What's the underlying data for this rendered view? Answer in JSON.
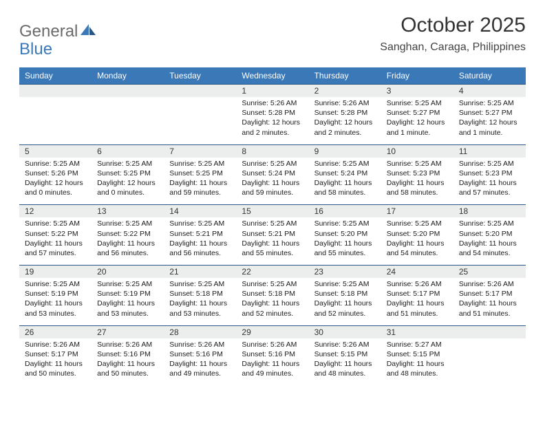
{
  "logo": {
    "text1": "General",
    "text2": "Blue",
    "icon_color": "#3a78b8"
  },
  "title": "October 2025",
  "location": "Sanghan, Caraga, Philippines",
  "colors": {
    "header_bg": "#3a78b8",
    "header_text": "#ffffff",
    "daynum_bg": "#eceeee",
    "border": "#2b5585",
    "page_bg": "#ffffff",
    "body_text": "#1a1a1a"
  },
  "layout": {
    "columns": 7,
    "rows": 5,
    "cell_font_size": 10.5,
    "header_font_size": 12
  },
  "dow": [
    "Sunday",
    "Monday",
    "Tuesday",
    "Wednesday",
    "Thursday",
    "Friday",
    "Saturday"
  ],
  "weeks": [
    [
      {
        "n": "",
        "l1": "",
        "l2": "",
        "l3": "",
        "l4": ""
      },
      {
        "n": "",
        "l1": "",
        "l2": "",
        "l3": "",
        "l4": ""
      },
      {
        "n": "",
        "l1": "",
        "l2": "",
        "l3": "",
        "l4": ""
      },
      {
        "n": "1",
        "l1": "Sunrise: 5:26 AM",
        "l2": "Sunset: 5:28 PM",
        "l3": "Daylight: 12 hours",
        "l4": "and 2 minutes."
      },
      {
        "n": "2",
        "l1": "Sunrise: 5:26 AM",
        "l2": "Sunset: 5:28 PM",
        "l3": "Daylight: 12 hours",
        "l4": "and 2 minutes."
      },
      {
        "n": "3",
        "l1": "Sunrise: 5:25 AM",
        "l2": "Sunset: 5:27 PM",
        "l3": "Daylight: 12 hours",
        "l4": "and 1 minute."
      },
      {
        "n": "4",
        "l1": "Sunrise: 5:25 AM",
        "l2": "Sunset: 5:27 PM",
        "l3": "Daylight: 12 hours",
        "l4": "and 1 minute."
      }
    ],
    [
      {
        "n": "5",
        "l1": "Sunrise: 5:25 AM",
        "l2": "Sunset: 5:26 PM",
        "l3": "Daylight: 12 hours",
        "l4": "and 0 minutes."
      },
      {
        "n": "6",
        "l1": "Sunrise: 5:25 AM",
        "l2": "Sunset: 5:25 PM",
        "l3": "Daylight: 12 hours",
        "l4": "and 0 minutes."
      },
      {
        "n": "7",
        "l1": "Sunrise: 5:25 AM",
        "l2": "Sunset: 5:25 PM",
        "l3": "Daylight: 11 hours",
        "l4": "and 59 minutes."
      },
      {
        "n": "8",
        "l1": "Sunrise: 5:25 AM",
        "l2": "Sunset: 5:24 PM",
        "l3": "Daylight: 11 hours",
        "l4": "and 59 minutes."
      },
      {
        "n": "9",
        "l1": "Sunrise: 5:25 AM",
        "l2": "Sunset: 5:24 PM",
        "l3": "Daylight: 11 hours",
        "l4": "and 58 minutes."
      },
      {
        "n": "10",
        "l1": "Sunrise: 5:25 AM",
        "l2": "Sunset: 5:23 PM",
        "l3": "Daylight: 11 hours",
        "l4": "and 58 minutes."
      },
      {
        "n": "11",
        "l1": "Sunrise: 5:25 AM",
        "l2": "Sunset: 5:23 PM",
        "l3": "Daylight: 11 hours",
        "l4": "and 57 minutes."
      }
    ],
    [
      {
        "n": "12",
        "l1": "Sunrise: 5:25 AM",
        "l2": "Sunset: 5:22 PM",
        "l3": "Daylight: 11 hours",
        "l4": "and 57 minutes."
      },
      {
        "n": "13",
        "l1": "Sunrise: 5:25 AM",
        "l2": "Sunset: 5:22 PM",
        "l3": "Daylight: 11 hours",
        "l4": "and 56 minutes."
      },
      {
        "n": "14",
        "l1": "Sunrise: 5:25 AM",
        "l2": "Sunset: 5:21 PM",
        "l3": "Daylight: 11 hours",
        "l4": "and 56 minutes."
      },
      {
        "n": "15",
        "l1": "Sunrise: 5:25 AM",
        "l2": "Sunset: 5:21 PM",
        "l3": "Daylight: 11 hours",
        "l4": "and 55 minutes."
      },
      {
        "n": "16",
        "l1": "Sunrise: 5:25 AM",
        "l2": "Sunset: 5:20 PM",
        "l3": "Daylight: 11 hours",
        "l4": "and 55 minutes."
      },
      {
        "n": "17",
        "l1": "Sunrise: 5:25 AM",
        "l2": "Sunset: 5:20 PM",
        "l3": "Daylight: 11 hours",
        "l4": "and 54 minutes."
      },
      {
        "n": "18",
        "l1": "Sunrise: 5:25 AM",
        "l2": "Sunset: 5:20 PM",
        "l3": "Daylight: 11 hours",
        "l4": "and 54 minutes."
      }
    ],
    [
      {
        "n": "19",
        "l1": "Sunrise: 5:25 AM",
        "l2": "Sunset: 5:19 PM",
        "l3": "Daylight: 11 hours",
        "l4": "and 53 minutes."
      },
      {
        "n": "20",
        "l1": "Sunrise: 5:25 AM",
        "l2": "Sunset: 5:19 PM",
        "l3": "Daylight: 11 hours",
        "l4": "and 53 minutes."
      },
      {
        "n": "21",
        "l1": "Sunrise: 5:25 AM",
        "l2": "Sunset: 5:18 PM",
        "l3": "Daylight: 11 hours",
        "l4": "and 53 minutes."
      },
      {
        "n": "22",
        "l1": "Sunrise: 5:25 AM",
        "l2": "Sunset: 5:18 PM",
        "l3": "Daylight: 11 hours",
        "l4": "and 52 minutes."
      },
      {
        "n": "23",
        "l1": "Sunrise: 5:25 AM",
        "l2": "Sunset: 5:18 PM",
        "l3": "Daylight: 11 hours",
        "l4": "and 52 minutes."
      },
      {
        "n": "24",
        "l1": "Sunrise: 5:26 AM",
        "l2": "Sunset: 5:17 PM",
        "l3": "Daylight: 11 hours",
        "l4": "and 51 minutes."
      },
      {
        "n": "25",
        "l1": "Sunrise: 5:26 AM",
        "l2": "Sunset: 5:17 PM",
        "l3": "Daylight: 11 hours",
        "l4": "and 51 minutes."
      }
    ],
    [
      {
        "n": "26",
        "l1": "Sunrise: 5:26 AM",
        "l2": "Sunset: 5:17 PM",
        "l3": "Daylight: 11 hours",
        "l4": "and 50 minutes."
      },
      {
        "n": "27",
        "l1": "Sunrise: 5:26 AM",
        "l2": "Sunset: 5:16 PM",
        "l3": "Daylight: 11 hours",
        "l4": "and 50 minutes."
      },
      {
        "n": "28",
        "l1": "Sunrise: 5:26 AM",
        "l2": "Sunset: 5:16 PM",
        "l3": "Daylight: 11 hours",
        "l4": "and 49 minutes."
      },
      {
        "n": "29",
        "l1": "Sunrise: 5:26 AM",
        "l2": "Sunset: 5:16 PM",
        "l3": "Daylight: 11 hours",
        "l4": "and 49 minutes."
      },
      {
        "n": "30",
        "l1": "Sunrise: 5:26 AM",
        "l2": "Sunset: 5:15 PM",
        "l3": "Daylight: 11 hours",
        "l4": "and 48 minutes."
      },
      {
        "n": "31",
        "l1": "Sunrise: 5:27 AM",
        "l2": "Sunset: 5:15 PM",
        "l3": "Daylight: 11 hours",
        "l4": "and 48 minutes."
      },
      {
        "n": "",
        "l1": "",
        "l2": "",
        "l3": "",
        "l4": ""
      }
    ]
  ]
}
